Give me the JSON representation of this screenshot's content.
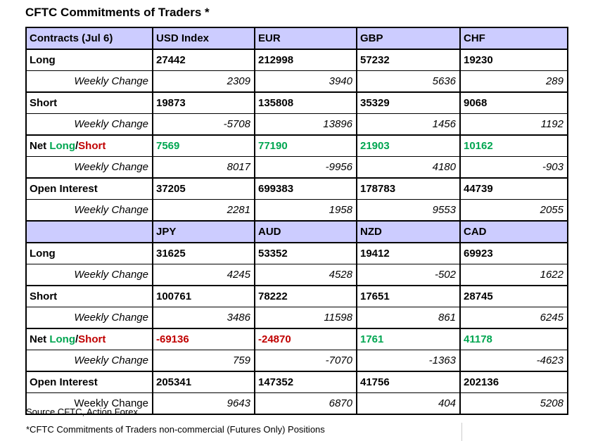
{
  "title": "CFTC Commitments of Traders *",
  "colors": {
    "header_bg": "#CCCCFF",
    "positive_green": "#00A651",
    "negative_red": "#C00000",
    "border": "#000000"
  },
  "table": {
    "sections": [
      {
        "header_label": "Contracts (Jul 6)",
        "columns": [
          "USD Index",
          "EUR",
          "GBP",
          "CHF"
        ],
        "rows": [
          {
            "kind": "main",
            "label": "Long",
            "values": [
              "27442",
              "212998",
              "57232",
              "19230"
            ]
          },
          {
            "kind": "weekly",
            "label": "Weekly Change",
            "values": [
              "2309",
              "3940",
              "5636",
              "289"
            ]
          },
          {
            "kind": "main",
            "label": "Short",
            "values": [
              "19873",
              "135808",
              "35329",
              "9068"
            ]
          },
          {
            "kind": "weekly",
            "label": "Weekly Change",
            "values": [
              "-5708",
              "13896",
              "1456",
              "1192"
            ]
          },
          {
            "kind": "main",
            "label_parts": [
              {
                "text": "Net ",
                "color": "#000000"
              },
              {
                "text": "Long",
                "color": "#00A651"
              },
              {
                "text": "/",
                "color": "#000000"
              },
              {
                "text": "Short",
                "color": "#C00000"
              }
            ],
            "values": [
              "7569",
              "77190",
              "21903",
              "10162"
            ],
            "value_colors": [
              "#00A651",
              "#00A651",
              "#00A651",
              "#00A651"
            ]
          },
          {
            "kind": "weekly",
            "label": "Weekly Change",
            "values": [
              "8017",
              "-9956",
              "4180",
              "-903"
            ]
          },
          {
            "kind": "main",
            "label": "Open Interest",
            "values": [
              "37205",
              "699383",
              "178783",
              "44739"
            ]
          },
          {
            "kind": "weekly",
            "label": "Weekly Change",
            "values": [
              "2281",
              "1958",
              "9553",
              "2055"
            ]
          }
        ]
      },
      {
        "header_label": "",
        "columns": [
          "JPY",
          "AUD",
          "NZD",
          "CAD"
        ],
        "rows": [
          {
            "kind": "main",
            "label": "Long",
            "values": [
              "31625",
              "53352",
              "19412",
              "69923"
            ]
          },
          {
            "kind": "weekly",
            "label": "Weekly Change",
            "values": [
              "4245",
              "4528",
              "-502",
              "1622"
            ]
          },
          {
            "kind": "main",
            "label": "Short",
            "values": [
              "100761",
              "78222",
              "17651",
              "28745"
            ]
          },
          {
            "kind": "weekly",
            "label": "Weekly Change",
            "values": [
              "3486",
              "11598",
              "861",
              "6245"
            ]
          },
          {
            "kind": "main",
            "label_parts": [
              {
                "text": "Net ",
                "color": "#000000"
              },
              {
                "text": "Long",
                "color": "#00A651"
              },
              {
                "text": "/",
                "color": "#000000"
              },
              {
                "text": "Short",
                "color": "#C00000"
              }
            ],
            "values": [
              "-69136",
              "-24870",
              "1761",
              "41178"
            ],
            "value_colors": [
              "#C00000",
              "#C00000",
              "#00A651",
              "#00A651"
            ]
          },
          {
            "kind": "weekly",
            "label": "Weekly Change",
            "values": [
              "759",
              "-7070",
              "-1363",
              "-4623"
            ]
          },
          {
            "kind": "main",
            "label": "Open Interest",
            "values": [
              "205341",
              "147352",
              "41756",
              "202136"
            ]
          },
          {
            "kind": "weekly",
            "label": "Weekly Change",
            "label_italic": false,
            "values": [
              "9643",
              "6870",
              "404",
              "5208"
            ]
          }
        ]
      }
    ]
  },
  "footer": {
    "source_line": "Source CFTC, Action Forex",
    "note_line": "*CFTC Commitments of Traders non-commercial (Futures Only) Positions"
  }
}
